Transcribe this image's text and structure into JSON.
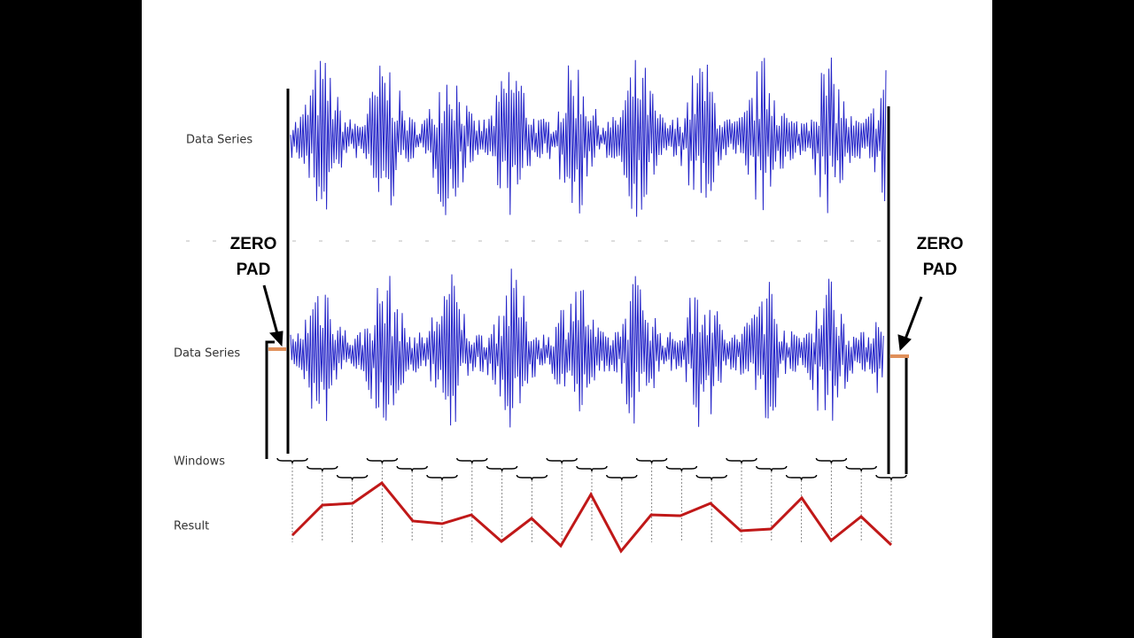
{
  "labels": {
    "series_top": "Data Series",
    "series_bottom": "Data Series",
    "windows": "Windows",
    "result": "Result"
  },
  "zero_pad_left": {
    "line1": "ZERO",
    "line2": "PAD"
  },
  "zero_pad_right": {
    "line1": "ZERO",
    "line2": "PAD"
  }
}
